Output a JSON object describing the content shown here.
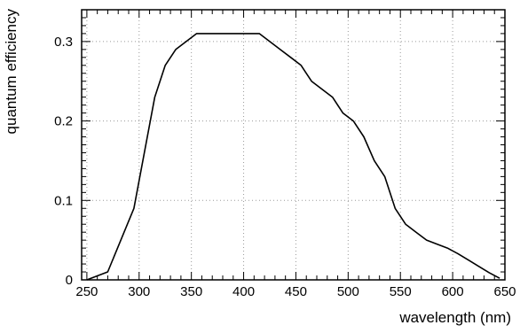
{
  "chart_data": {
    "type": "line",
    "title": "",
    "xlabel": "wavelength (nm)",
    "ylabel": "quantum efficiency",
    "xlim": [
      245,
      650
    ],
    "ylim": [
      0,
      0.34
    ],
    "grid": true,
    "x_ticks": [
      250,
      300,
      350,
      400,
      450,
      500,
      550,
      600,
      650
    ],
    "y_ticks": [
      0,
      0.1,
      0.2,
      0.3
    ],
    "x_tick_labels": [
      "250",
      "300",
      "350",
      "400",
      "450",
      "500",
      "550",
      "600",
      "650"
    ],
    "y_tick_labels": [
      "0",
      "0.1",
      "0.2",
      "0.3"
    ],
    "series": [
      {
        "x": [
          250,
          270,
          295,
          315,
          325,
          335,
          355,
          375,
          395,
          415,
          425,
          435,
          445,
          455,
          460,
          465,
          475,
          485,
          495,
          505,
          515,
          525,
          535,
          545,
          555,
          565,
          575,
          585,
          595,
          605,
          615,
          625,
          635,
          645
        ],
        "y": [
          0.0,
          0.01,
          0.09,
          0.23,
          0.27,
          0.29,
          0.31,
          0.31,
          0.31,
          0.31,
          0.3,
          0.29,
          0.28,
          0.27,
          0.26,
          0.25,
          0.24,
          0.23,
          0.21,
          0.2,
          0.18,
          0.15,
          0.13,
          0.09,
          0.07,
          0.06,
          0.05,
          0.045,
          0.04,
          0.033,
          0.025,
          0.017,
          0.009,
          0.002
        ]
      }
    ]
  }
}
